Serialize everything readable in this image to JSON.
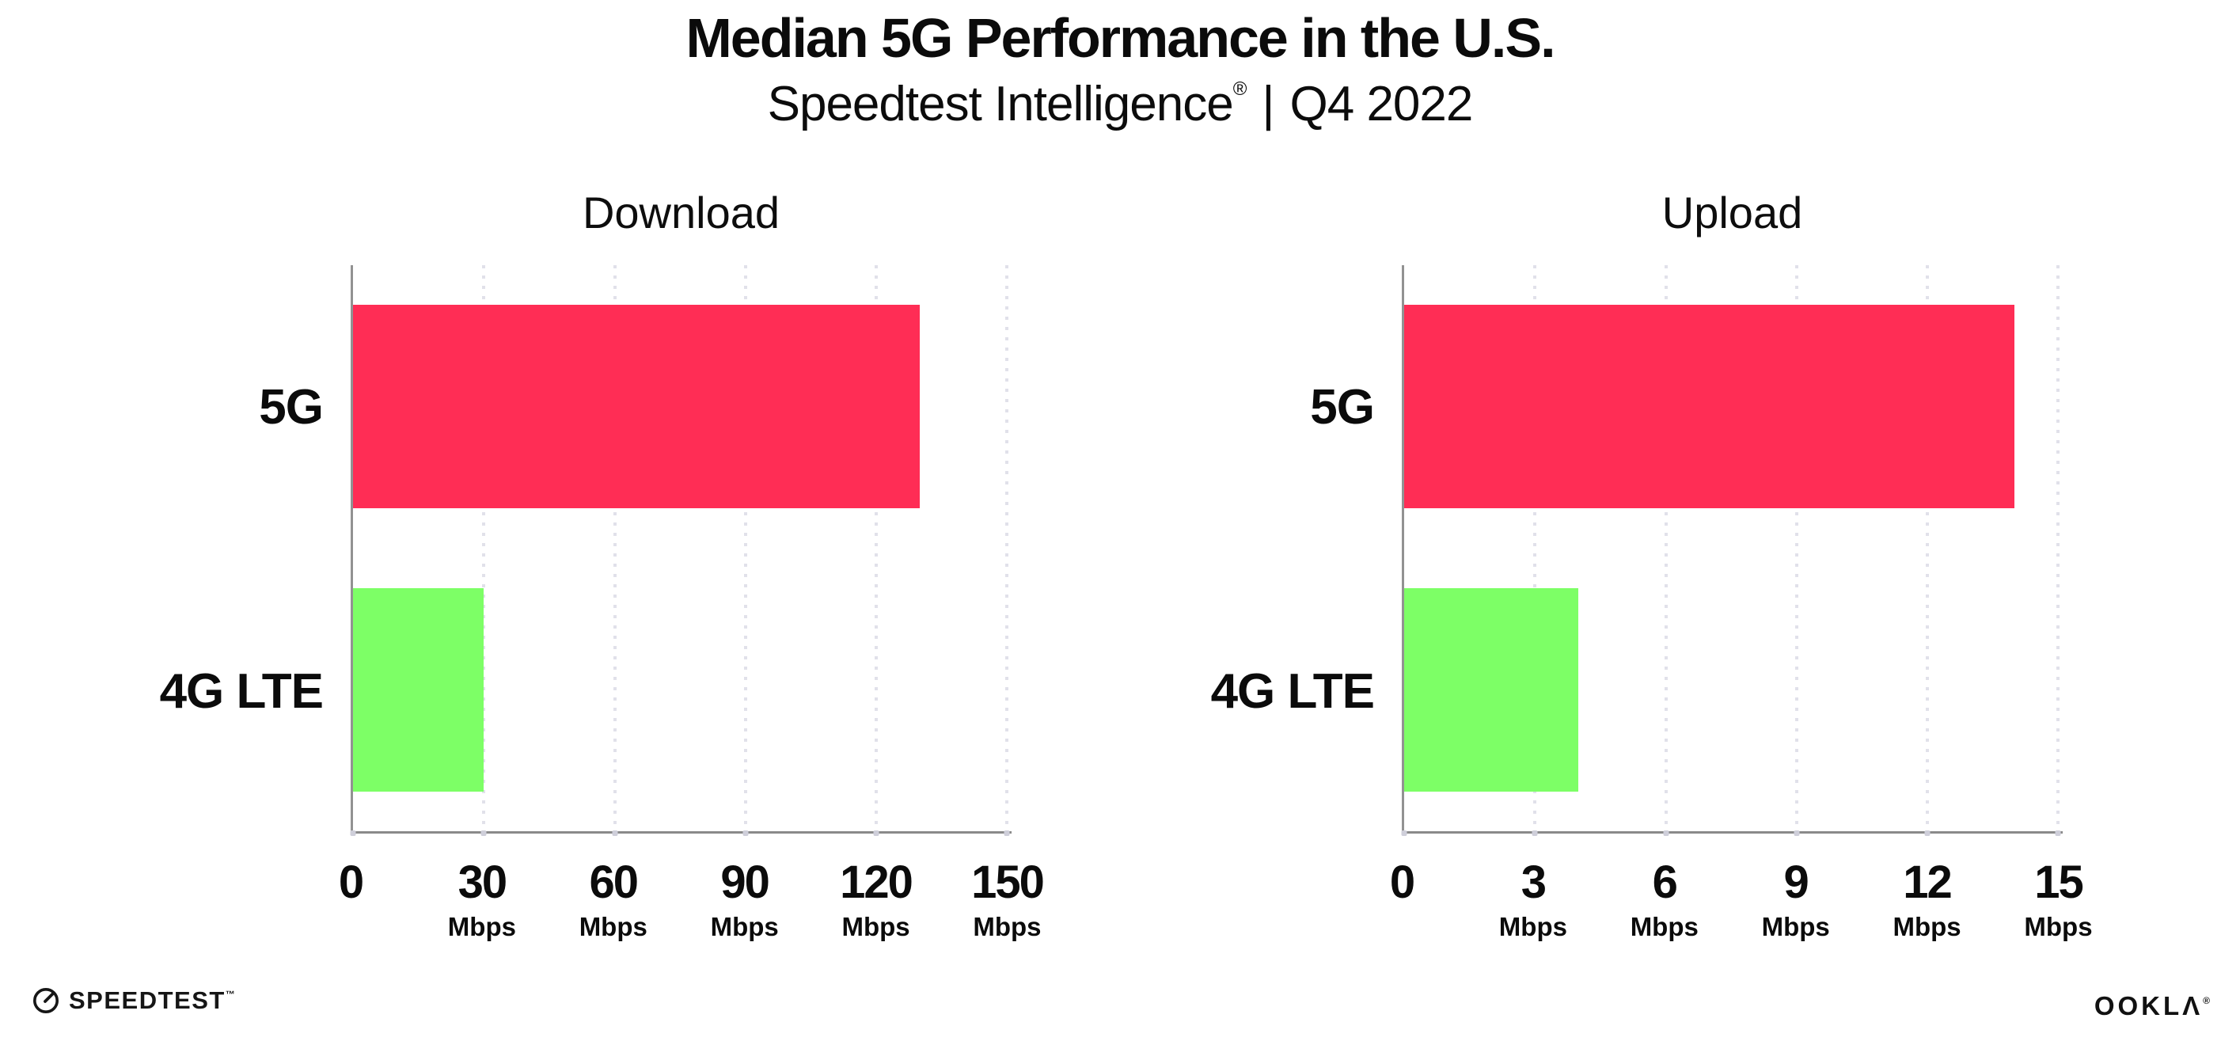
{
  "header": {
    "title": "Median 5G Performance in the U.S.",
    "subtitle": {
      "brand": "Speedtest Intelligence",
      "reg": "®",
      "sep": "|",
      "period": "Q4 2022"
    }
  },
  "chart_data": [
    {
      "type": "bar",
      "orientation": "horizontal",
      "title": "Download",
      "categories": [
        "5G",
        "4G LTE"
      ],
      "values": [
        130,
        30
      ],
      "value_unit": "Mbps",
      "bar_colors": [
        "#FF2D55",
        "#7DFF66"
      ],
      "xticks": [
        0,
        30,
        60,
        90,
        120,
        150
      ],
      "tick_unit": "Mbps",
      "xlim": [
        0,
        151
      ],
      "grid": "dotted-vertical",
      "legend": "none"
    },
    {
      "type": "bar",
      "orientation": "horizontal",
      "title": "Upload",
      "categories": [
        "5G",
        "4G LTE"
      ],
      "values": [
        14,
        4
      ],
      "value_unit": "Mbps",
      "bar_colors": [
        "#FF2D55",
        "#7DFF66"
      ],
      "xticks": [
        0,
        3,
        6,
        9,
        12,
        15
      ],
      "tick_unit": "Mbps",
      "xlim": [
        0,
        15.1
      ],
      "grid": "dotted-vertical",
      "legend": "none"
    }
  ],
  "footer": {
    "speedtest_label": "SPEEDTEST",
    "speedtest_tm": "™",
    "ookla_label": "OOKLΛ",
    "ookla_reg": "®"
  },
  "colors": {
    "bar_5g": "#FF2D55",
    "bar_4g_lte": "#7DFF66",
    "text": "#0b0b0b",
    "gridline": "#e1e1ea",
    "spine": "#8f8f8f"
  }
}
